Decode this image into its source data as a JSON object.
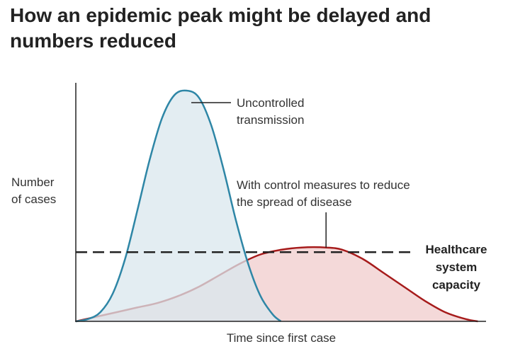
{
  "chart_data": {
    "type": "area",
    "title_lines": [
      "How an epidemic peak might be delayed and",
      "numbers reduced"
    ],
    "xlabel": "Time since first case",
    "ylabel_lines": [
      "Number",
      "of cases"
    ],
    "series": [
      {
        "name_lines": [
          "Uncontrolled",
          "transmission"
        ],
        "color": "#2e86a6",
        "fill": "#d9e7ee",
        "peak_x": 0.27,
        "values": [
          [
            0.0,
            0
          ],
          [
            0.03,
            1
          ],
          [
            0.06,
            4
          ],
          [
            0.09,
            12
          ],
          [
            0.12,
            27
          ],
          [
            0.15,
            48
          ],
          [
            0.18,
            70
          ],
          [
            0.21,
            88
          ],
          [
            0.24,
            98
          ],
          [
            0.27,
            100
          ],
          [
            0.3,
            97
          ],
          [
            0.33,
            85
          ],
          [
            0.36,
            66
          ],
          [
            0.39,
            44
          ],
          [
            0.42,
            25
          ],
          [
            0.45,
            11
          ],
          [
            0.48,
            3
          ],
          [
            0.5,
            0
          ]
        ]
      },
      {
        "name_lines": [
          "With control measures to reduce",
          "the spread of disease"
        ],
        "color": "#a61b1b",
        "fill": "#f4d9d9",
        "peak_x": 0.61,
        "values": [
          [
            0.0,
            0
          ],
          [
            0.05,
            2
          ],
          [
            0.1,
            4
          ],
          [
            0.15,
            6
          ],
          [
            0.2,
            8
          ],
          [
            0.25,
            11
          ],
          [
            0.3,
            15
          ],
          [
            0.35,
            20
          ],
          [
            0.4,
            25
          ],
          [
            0.45,
            29
          ],
          [
            0.5,
            31
          ],
          [
            0.55,
            32
          ],
          [
            0.61,
            32
          ],
          [
            0.65,
            31
          ],
          [
            0.7,
            27
          ],
          [
            0.75,
            21
          ],
          [
            0.8,
            15
          ],
          [
            0.85,
            9
          ],
          [
            0.9,
            4
          ],
          [
            0.95,
            1
          ],
          [
            0.98,
            0
          ]
        ]
      }
    ],
    "threshold": {
      "label_lines": [
        "Healthcare",
        "system",
        "capacity"
      ],
      "value": 30,
      "color": "#222222"
    },
    "xlim": [
      0,
      1
    ],
    "ylim": [
      0,
      100
    ],
    "grid": false
  }
}
